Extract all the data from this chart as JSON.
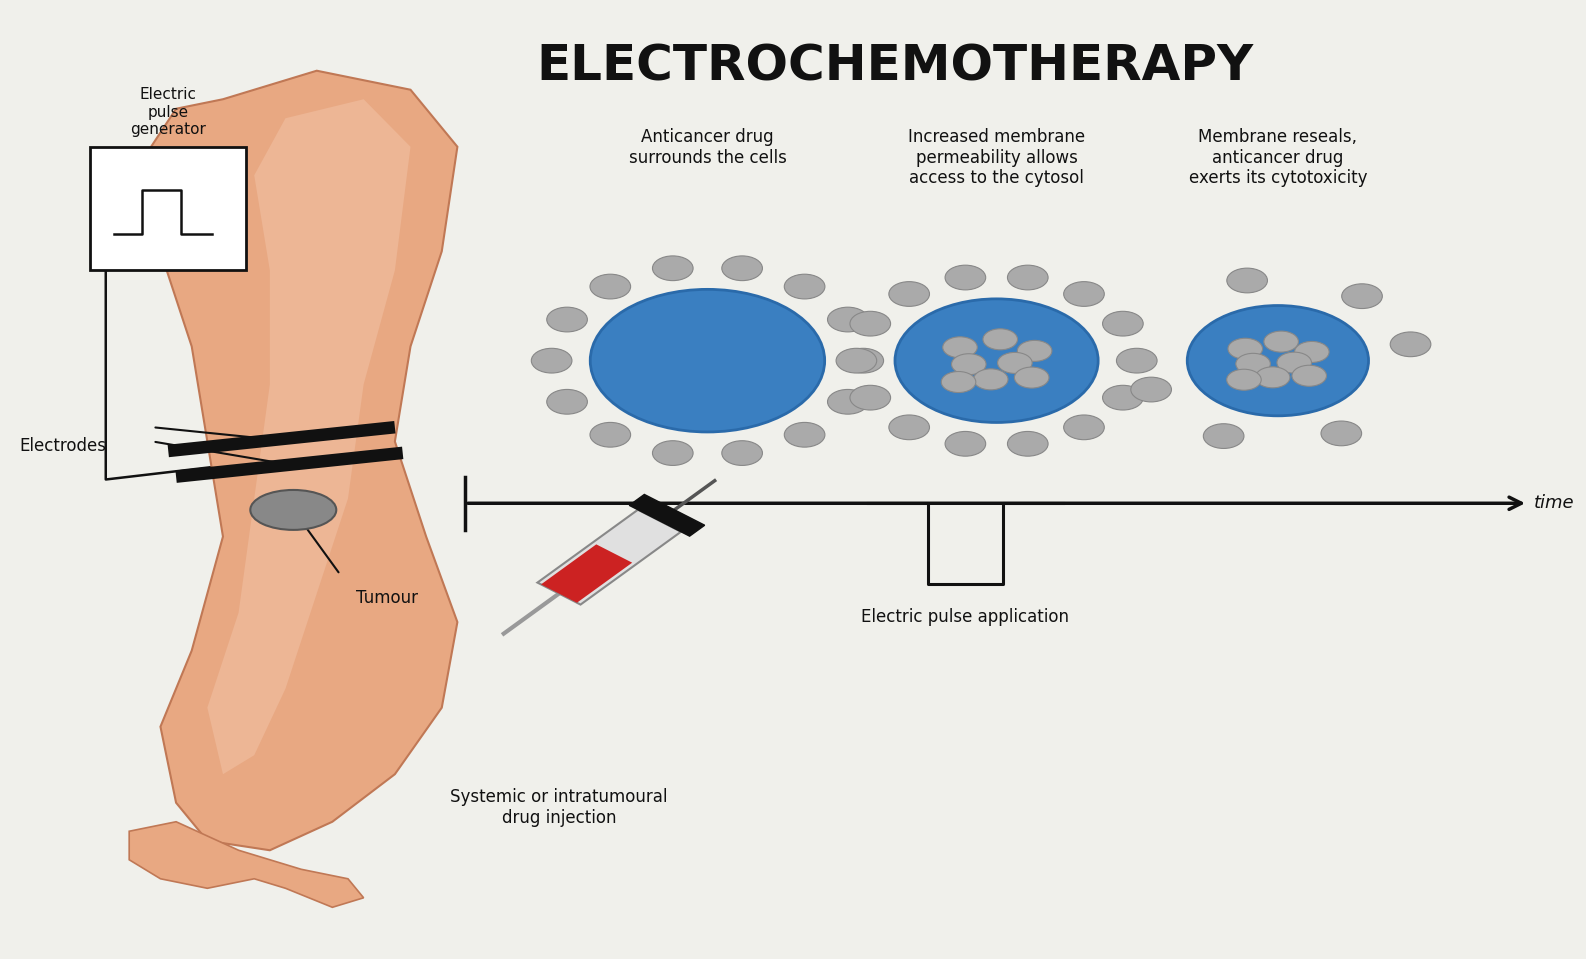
{
  "title": "ELECTROCHEMOTHERAPY",
  "title_fontsize": 36,
  "title_fontweight": "bold",
  "bg_color": "#f0f0eb",
  "text_color": "#111111",
  "cell_blue": "#3a7fc1",
  "cell_outline": "#2a6aaa",
  "drug_dot_color": "#aaaaaa",
  "drug_dot_edge": "#888888",
  "arm_skin": "#e8a882",
  "arm_light": "#f2c4a8",
  "arm_edge": "#c07855",
  "labels": {
    "electric_pulse_gen": "Electric\npulse\ngenerator",
    "electrodes": "Electrodes",
    "tumour": "Tumour",
    "injection": "Systemic or intratumoural\ndrug injection",
    "cell1_title": "Anticancer drug\nsurrounds the cells",
    "cell2_title": "Increased membrane\npermeability allows\naccess to the cytosol",
    "cell3_title": "Membrane reseals,\nanticancer drug\nexerts its cytotoxicity",
    "pulse_label": "Electric pulse application",
    "time_label": "time"
  }
}
